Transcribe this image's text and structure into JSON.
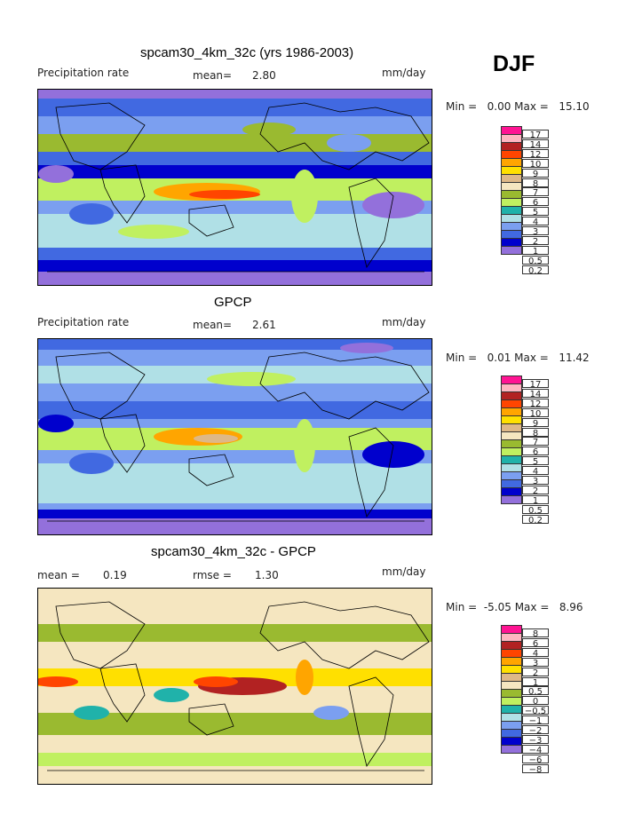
{
  "season": "DJF",
  "panels": [
    {
      "title": "spcam30_4km_32c (yrs 1986-2003)",
      "left_label": "Precipitation rate",
      "mid_label": "mean=",
      "mid_value": "2.80",
      "units": "mm/day",
      "min_label": "Min =",
      "min_value": "0.00",
      "max_label": "Max =",
      "max_value": "15.10"
    },
    {
      "title": "GPCP",
      "left_label": "Precipitation rate",
      "mid_label": "mean=",
      "mid_value": "2.61",
      "units": "mm/day",
      "min_label": "Min =",
      "min_value": "0.01",
      "max_label": "Max =",
      "max_value": "11.42"
    },
    {
      "title": "spcam30_4km_32c - GPCP",
      "left_label": "mean =",
      "left_value": "0.19",
      "mid_label": "rmse =",
      "mid_value": "1.30",
      "units": "mm/day",
      "min_label": "Min =",
      "min_value": "-5.05",
      "max_label": "Max =",
      "max_value": "8.96"
    }
  ],
  "colorbar_colors": [
    "#ff1493",
    "#ffb6c1",
    "#b22222",
    "#ff4500",
    "#ffa500",
    "#ffe000",
    "#deb887",
    "#f5e6c0",
    "#9aba30",
    "#c0f060",
    "#20b2aa",
    "#b0e0e6",
    "#7b9ff0",
    "#4169e1",
    "#0000cd",
    "#9370db"
  ],
  "precip_levels": [
    "17",
    "14",
    "12",
    "10",
    "9",
    "8",
    "7",
    "6",
    "5",
    "4",
    "3",
    "2",
    "1",
    "0.5",
    "0.2"
  ],
  "diff_levels": [
    "8",
    "6",
    "4",
    "3",
    "2",
    "1",
    "0.5",
    "0",
    "−0.5",
    "−1",
    "−2",
    "−3",
    "−4",
    "−6",
    "−8"
  ]
}
